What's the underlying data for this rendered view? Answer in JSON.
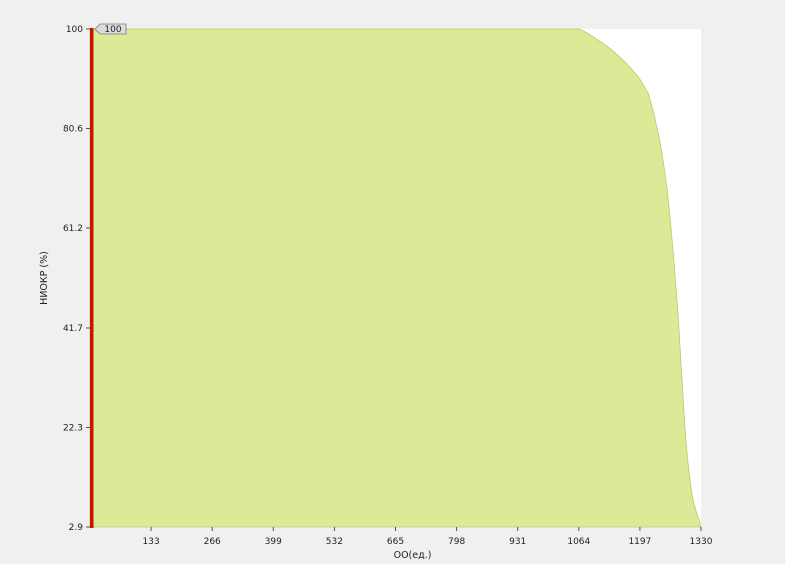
{
  "chart_data": {
    "type": "area",
    "title": "",
    "xlabel": "ОО(ед.)",
    "ylabel": "НИОКР (%)",
    "xlim": [
      0,
      1330
    ],
    "ylim": [
      2.9,
      100
    ],
    "xticks": [
      133,
      266,
      399,
      532,
      665,
      798,
      931,
      1064,
      1197,
      1330
    ],
    "xtick_labels": [
      "133",
      "266",
      "399",
      "532",
      "665",
      "798",
      "931",
      "1064",
      "1197",
      "1330"
    ],
    "yticks": [
      2.9,
      22.3,
      41.7,
      61.2,
      80.6,
      100
    ],
    "ytick_labels": [
      "2.9",
      "22.3",
      "41.7",
      "61.2",
      "80.6",
      "100"
    ],
    "grid": false,
    "series": [
      {
        "x": [
          0,
          1064,
          1075,
          1095,
          1115,
          1135,
          1155,
          1175,
          1195,
          1215,
          1228,
          1240,
          1248,
          1256,
          1263,
          1270,
          1276,
          1281,
          1285,
          1289,
          1293,
          1297,
          1301,
          1306,
          1311,
          1316,
          1321,
          1326,
          1330
        ],
        "y": [
          100,
          100,
          99.6,
          98.5,
          97.3,
          96,
          94.4,
          92.6,
          90.5,
          87.5,
          83.3,
          78.3,
          74,
          69,
          63,
          56,
          49,
          43,
          37,
          31,
          25,
          20,
          16,
          12,
          9,
          7,
          5.5,
          4.2,
          2.9
        ],
        "color": "#dbea97"
      }
    ],
    "marker": {
      "x": 0,
      "label": "100",
      "color": "#cc1100"
    },
    "colors": {
      "plot_bg": "#ffffff",
      "fill": "#dbea97",
      "outline": "#b6cc6a",
      "marker": "#cc1100"
    }
  }
}
